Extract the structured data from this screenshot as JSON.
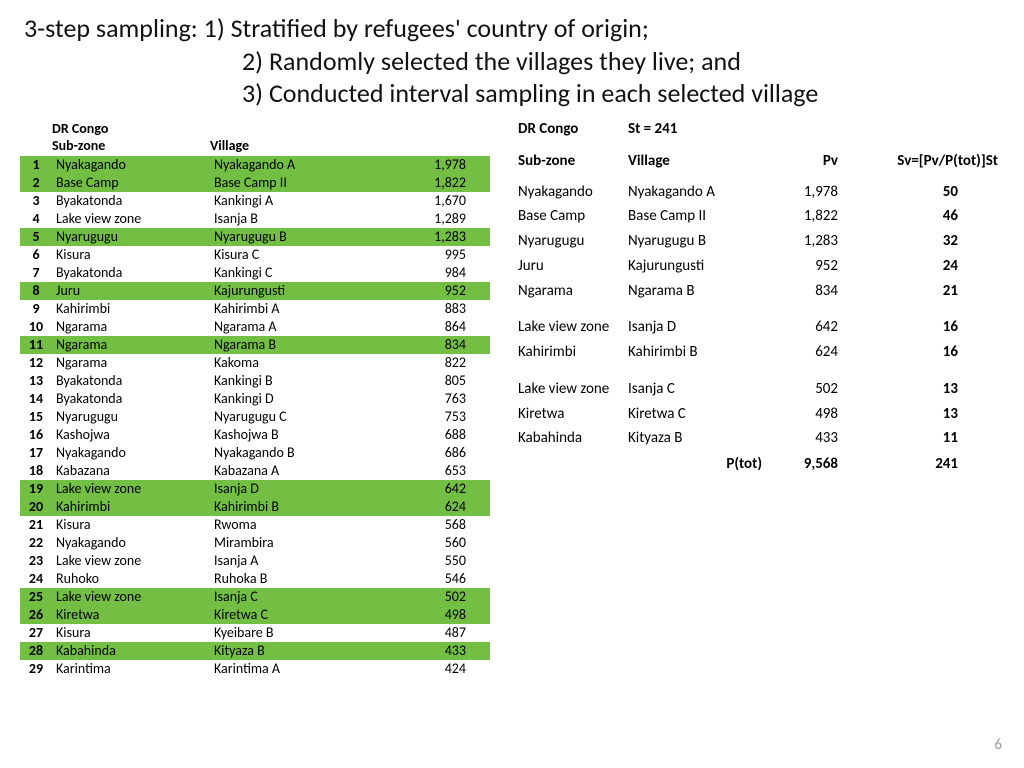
{
  "title": {
    "line1": "3-step sampling: 1) Stratified by refugees' country of origin;",
    "line2": "2) Randomly selected the villages they live; and",
    "line3": "3) Conducted interval sampling in each selected village"
  },
  "left": {
    "region_label": "DR Congo",
    "header_subzone": "Sub-zone",
    "header_village": "Village",
    "highlight_color": "#72bf44",
    "rows": [
      {
        "n": "1",
        "sub": "Nyakagando",
        "vil": "Nyakagando A",
        "pop": "1,978",
        "hl": true
      },
      {
        "n": "2",
        "sub": "Base Camp",
        "vil": "Base Camp II",
        "pop": "1,822",
        "hl": true
      },
      {
        "n": "3",
        "sub": "Byakatonda",
        "vil": "Kankingi A",
        "pop": "1,670",
        "hl": false
      },
      {
        "n": "4",
        "sub": "Lake view zone",
        "vil": "Isanja B",
        "pop": "1,289",
        "hl": false
      },
      {
        "n": "5",
        "sub": "Nyarugugu",
        "vil": "Nyarugugu B",
        "pop": "1,283",
        "hl": true
      },
      {
        "n": "6",
        "sub": "Kisura",
        "vil": "Kisura C",
        "pop": "995",
        "hl": false
      },
      {
        "n": "7",
        "sub": "Byakatonda",
        "vil": "Kankingi C",
        "pop": "984",
        "hl": false
      },
      {
        "n": "8",
        "sub": "Juru",
        "vil": "Kajurungusti",
        "pop": "952",
        "hl": true
      },
      {
        "n": "9",
        "sub": "Kahirimbi",
        "vil": "Kahirimbi A",
        "pop": "883",
        "hl": false
      },
      {
        "n": "10",
        "sub": "Ngarama",
        "vil": "Ngarama A",
        "pop": "864",
        "hl": false
      },
      {
        "n": "11",
        "sub": "Ngarama",
        "vil": "Ngarama B",
        "pop": "834",
        "hl": true
      },
      {
        "n": "12",
        "sub": "Ngarama",
        "vil": "Kakoma",
        "pop": "822",
        "hl": false
      },
      {
        "n": "13",
        "sub": "Byakatonda",
        "vil": "Kankingi B",
        "pop": "805",
        "hl": false
      },
      {
        "n": "14",
        "sub": "Byakatonda",
        "vil": "Kankingi D",
        "pop": "763",
        "hl": false
      },
      {
        "n": "15",
        "sub": "Nyarugugu",
        "vil": "Nyarugugu C",
        "pop": "753",
        "hl": false
      },
      {
        "n": "16",
        "sub": "Kashojwa",
        "vil": "Kashojwa B",
        "pop": "688",
        "hl": false
      },
      {
        "n": "17",
        "sub": "Nyakagando",
        "vil": "Nyakagando B",
        "pop": "686",
        "hl": false
      },
      {
        "n": "18",
        "sub": "Kabazana",
        "vil": "Kabazana A",
        "pop": "653",
        "hl": false
      },
      {
        "n": "19",
        "sub": "Lake view zone",
        "vil": "Isanja D",
        "pop": "642",
        "hl": true
      },
      {
        "n": "20",
        "sub": "Kahirimbi",
        "vil": "Kahirimbi B",
        "pop": "624",
        "hl": true
      },
      {
        "n": "21",
        "sub": "Kisura",
        "vil": "Rwoma",
        "pop": "568",
        "hl": false
      },
      {
        "n": "22",
        "sub": "Nyakagando",
        "vil": "Mirambira",
        "pop": "560",
        "hl": false
      },
      {
        "n": "23",
        "sub": "Lake view zone",
        "vil": "Isanja A",
        "pop": "550",
        "hl": false
      },
      {
        "n": "24",
        "sub": "Ruhoko",
        "vil": "Ruhoka B",
        "pop": "546",
        "hl": false
      },
      {
        "n": "25",
        "sub": "Lake view zone",
        "vil": "Isanja C",
        "pop": "502",
        "hl": true
      },
      {
        "n": "26",
        "sub": "Kiretwa",
        "vil": "Kiretwa C",
        "pop": "498",
        "hl": true
      },
      {
        "n": "27",
        "sub": "Kisura",
        "vil": "Kyeibare B",
        "pop": "487",
        "hl": false
      },
      {
        "n": "28",
        "sub": "Kabahinda",
        "vil": "Kityaza B",
        "pop": "433",
        "hl": true
      },
      {
        "n": "29",
        "sub": "Karintima",
        "vil": "Karintima A",
        "pop": "424",
        "hl": false
      }
    ]
  },
  "right": {
    "region_label": "DR Congo",
    "st_label": "St = 241",
    "header_subzone": "Sub-zone",
    "header_village": "Village",
    "header_pv": "Pv",
    "header_sv": "Sv=[Pv/P(tot)]St",
    "groups": [
      [
        {
          "sub": "Nyakagando",
          "vil": "Nyakagando A",
          "pv": "1,978",
          "sv": "50"
        },
        {
          "sub": "Base Camp",
          "vil": "Base Camp II",
          "pv": "1,822",
          "sv": "46"
        },
        {
          "sub": "Nyarugugu",
          "vil": "Nyarugugu B",
          "pv": "1,283",
          "sv": "32"
        },
        {
          "sub": "Juru",
          "vil": "Kajurungusti",
          "pv": "952",
          "sv": "24"
        },
        {
          "sub": "Ngarama",
          "vil": "Ngarama B",
          "pv": "834",
          "sv": "21"
        }
      ],
      [
        {
          "sub": "Lake view zone",
          "vil": "Isanja D",
          "pv": "642",
          "sv": "16"
        },
        {
          "sub": "Kahirimbi",
          "vil": "Kahirimbi B",
          "pv": "624",
          "sv": "16"
        }
      ],
      [
        {
          "sub": "Lake view zone",
          "vil": "Isanja C",
          "pv": "502",
          "sv": "13"
        },
        {
          "sub": "Kiretwa",
          "vil": "Kiretwa C",
          "pv": "498",
          "sv": "13"
        },
        {
          "sub": "Kabahinda",
          "vil": "Kityaza B",
          "pv": "433",
          "sv": "11"
        }
      ]
    ],
    "total_label": "P(tot)",
    "total_pv": "9,568",
    "total_sv": "241"
  },
  "page_number": "6"
}
